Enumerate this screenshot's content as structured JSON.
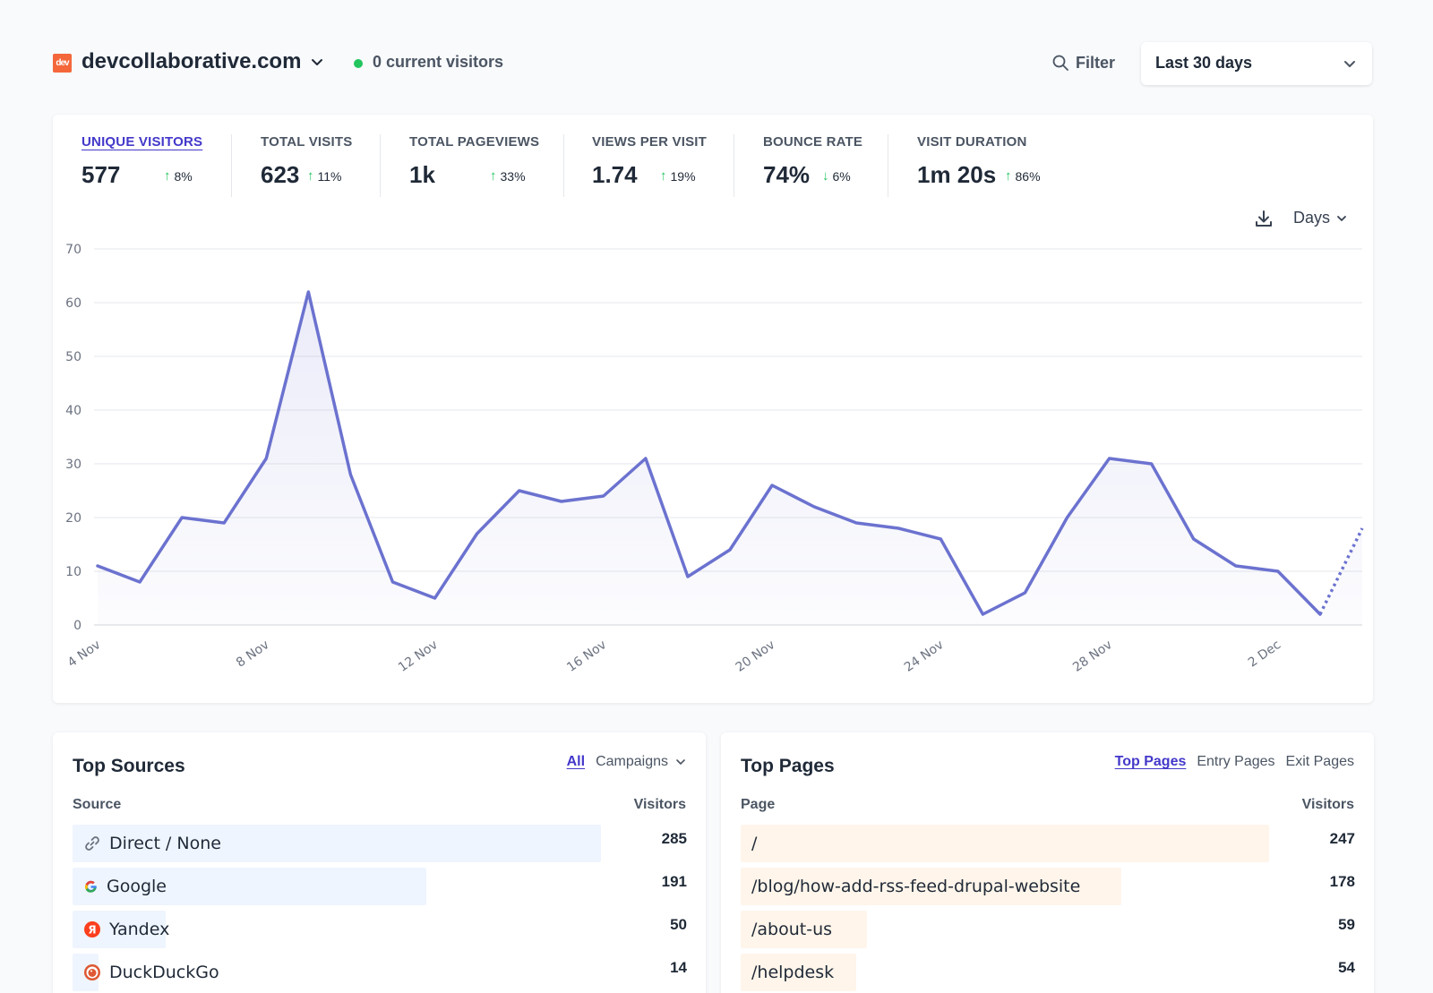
{
  "header": {
    "logo_text": "dev",
    "site_name": "devcollaborative.com",
    "current_visitors": "0 current visitors",
    "filter_label": "Filter",
    "date_range": "Last 30 days"
  },
  "metrics": [
    {
      "label": "UNIQUE VISITORS",
      "value": "577",
      "change": "8%",
      "direction": "up",
      "active": true
    },
    {
      "label": "TOTAL VISITS",
      "value": "623",
      "change": "11%",
      "direction": "up",
      "active": false
    },
    {
      "label": "TOTAL PAGEVIEWS",
      "value": "1k",
      "change": "33%",
      "direction": "up",
      "active": false
    },
    {
      "label": "VIEWS PER VISIT",
      "value": "1.74",
      "change": "19%",
      "direction": "up",
      "active": false
    },
    {
      "label": "BOUNCE RATE",
      "value": "74%",
      "change": "6%",
      "direction": "down",
      "active": false
    },
    {
      "label": "VISIT DURATION",
      "value": "1m 20s",
      "change": "86%",
      "direction": "up",
      "active": false
    }
  ],
  "chart_controls": {
    "interval_label": "Days"
  },
  "chart_data": {
    "type": "line",
    "title": "",
    "xlabel": "",
    "ylabel": "",
    "ylim": [
      0,
      70
    ],
    "y_ticks": [
      "0",
      "10",
      "20",
      "30",
      "40",
      "50",
      "60",
      "70"
    ],
    "x_tick_labels": [
      "4 Nov",
      "8 Nov",
      "12 Nov",
      "16 Nov",
      "20 Nov",
      "24 Nov",
      "28 Nov",
      "2 Dec"
    ],
    "x": [
      "4 Nov",
      "5 Nov",
      "6 Nov",
      "7 Nov",
      "8 Nov",
      "9 Nov",
      "10 Nov",
      "11 Nov",
      "12 Nov",
      "13 Nov",
      "14 Nov",
      "15 Nov",
      "16 Nov",
      "17 Nov",
      "18 Nov",
      "19 Nov",
      "20 Nov",
      "21 Nov",
      "22 Nov",
      "23 Nov",
      "24 Nov",
      "25 Nov",
      "26 Nov",
      "27 Nov",
      "28 Nov",
      "29 Nov",
      "30 Nov",
      "1 Dec",
      "2 Dec",
      "3 Dec",
      "4 Dec"
    ],
    "series": [
      {
        "values": [
          11,
          8,
          20,
          19,
          31,
          62,
          28,
          8,
          5,
          17,
          25,
          23,
          24,
          31,
          9,
          14,
          26,
          22,
          19,
          18,
          16,
          2,
          6,
          20,
          31,
          30,
          16,
          11,
          10,
          2,
          18
        ]
      }
    ],
    "incomplete_last_point": true,
    "grid": true,
    "colors": {
      "line": "#6b72cf",
      "fill": "#eef0fb"
    }
  },
  "top_sources": {
    "title": "Top Sources",
    "tabs": [
      "All",
      "Campaigns"
    ],
    "col_source": "Source",
    "col_visitors": "Visitors",
    "rows": [
      {
        "label": "Direct / None",
        "value": "285",
        "count": 285,
        "icon": "link-icon"
      },
      {
        "label": "Google",
        "value": "191",
        "count": 191,
        "icon": "google-icon"
      },
      {
        "label": "Yandex",
        "value": "50",
        "count": 50,
        "icon": "yandex-icon"
      },
      {
        "label": "DuckDuckGo",
        "value": "14",
        "count": 14,
        "icon": "duckduckgo-icon"
      }
    ],
    "bar_color": "#eef5fe",
    "max_count": 285
  },
  "top_pages": {
    "title": "Top Pages",
    "tabs": [
      "Top Pages",
      "Entry Pages",
      "Exit Pages"
    ],
    "col_page": "Page",
    "col_visitors": "Visitors",
    "rows": [
      {
        "label": "/",
        "value": "247",
        "count": 247
      },
      {
        "label": "/blog/how-add-rss-feed-drupal-website",
        "value": "178",
        "count": 178
      },
      {
        "label": "/about-us",
        "value": "59",
        "count": 59
      },
      {
        "label": "/helpdesk",
        "value": "54",
        "count": 54
      }
    ],
    "bar_color": "#fff5ea",
    "max_count": 247
  }
}
